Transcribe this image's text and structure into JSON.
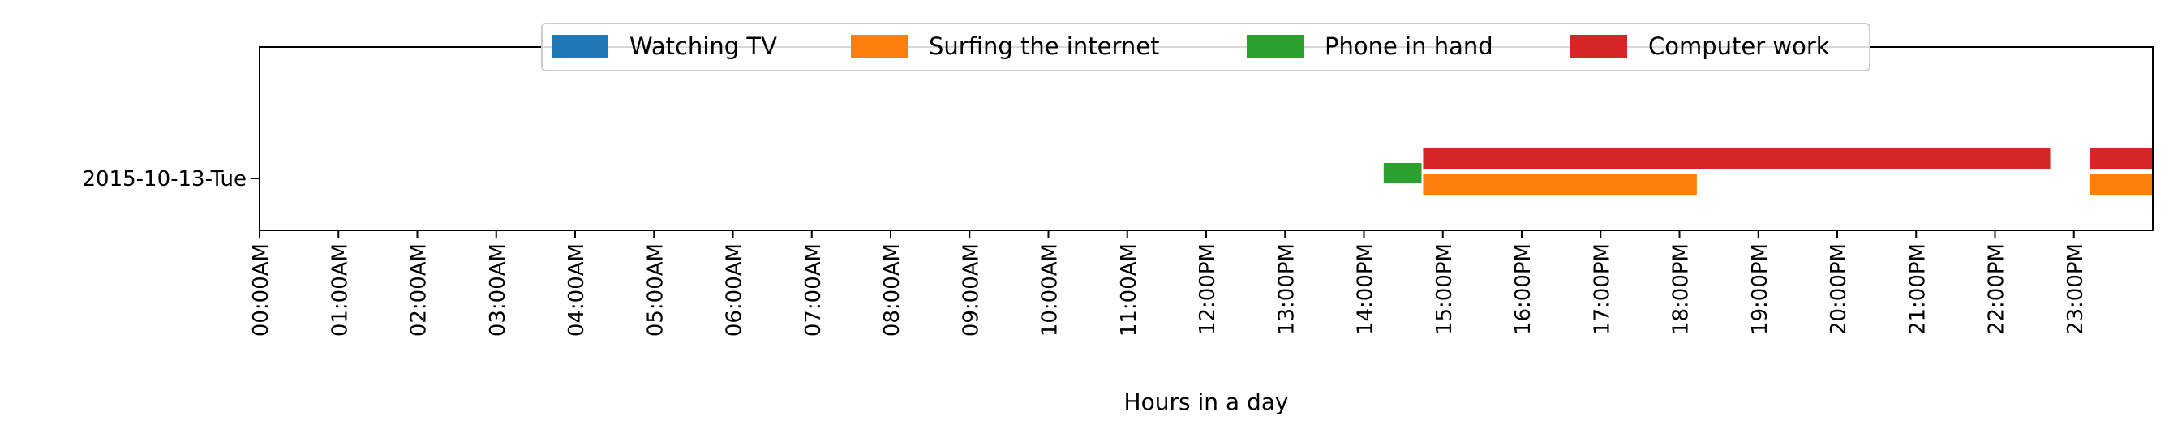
{
  "chart_data": {
    "type": "timeline",
    "xlabel": "Hours in a day",
    "ylabel": "",
    "xlim": [
      0,
      24
    ],
    "x_ticks": [
      "00:00AM",
      "01:00AM",
      "02:00AM",
      "03:00AM",
      "04:00AM",
      "05:00AM",
      "06:00AM",
      "07:00AM",
      "08:00AM",
      "09:00AM",
      "10:00AM",
      "11:00AM",
      "12:00PM",
      "13:00PM",
      "14:00PM",
      "15:00PM",
      "16:00PM",
      "17:00PM",
      "18:00PM",
      "19:00PM",
      "20:00PM",
      "21:00PM",
      "22:00PM",
      "23:00PM"
    ],
    "categories": [
      "2015-10-13-Tue"
    ],
    "legend_position": "top-center",
    "grid": false,
    "series": [
      {
        "name": "Watching TV",
        "color": "#1f77b4",
        "intervals": []
      },
      {
        "name": "Surfing the internet",
        "color": "#ff7f0e",
        "intervals": [
          [
            14.75,
            18.22
          ],
          [
            23.2,
            24.0
          ]
        ]
      },
      {
        "name": "Phone in hand",
        "color": "#2ca02c",
        "intervals": [
          [
            14.25,
            14.73
          ]
        ]
      },
      {
        "name": "Computer work",
        "color": "#d62728",
        "intervals": [
          [
            14.75,
            22.7
          ],
          [
            23.2,
            24.0
          ]
        ]
      }
    ]
  }
}
